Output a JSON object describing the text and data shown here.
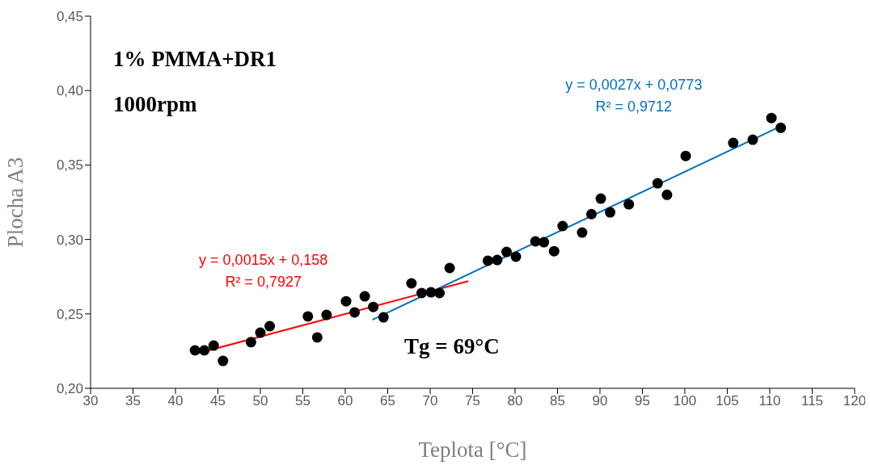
{
  "chart_data": {
    "type": "scatter",
    "xlabel": "Teplota [°C]",
    "ylabel": "Plocha A3",
    "xlim": [
      30,
      120
    ],
    "xticks": [
      30,
      35,
      40,
      45,
      50,
      55,
      60,
      65,
      70,
      75,
      80,
      85,
      90,
      95,
      100,
      105,
      110,
      115,
      120
    ],
    "ylim": [
      0.2,
      0.45
    ],
    "yticks": [
      {
        "value": 0.2,
        "label": "0,20"
      },
      {
        "value": 0.25,
        "label": "0,25"
      },
      {
        "value": 0.3,
        "label": "0,30"
      },
      {
        "value": 0.35,
        "label": "0,35"
      },
      {
        "value": 0.4,
        "label": "0,40"
      },
      {
        "value": 0.45,
        "label": "0,45"
      }
    ],
    "series": [
      {
        "marker": "circle",
        "color": "#000000",
        "x": [
          42.3,
          43.4,
          44.5,
          45.6,
          48.9,
          50.0,
          51.1,
          55.6,
          56.7,
          57.8,
          60.1,
          61.1,
          62.3,
          63.3,
          64.5,
          67.8,
          69.0,
          70.1,
          71.1,
          72.3,
          76.8,
          77.9,
          79.0,
          80.1,
          82.4,
          83.4,
          84.6,
          85.6,
          87.9,
          89.0,
          90.1,
          91.2,
          93.4,
          96.8,
          97.9,
          100.1,
          105.7,
          108.0,
          110.2,
          111.3
        ],
        "values": [
          0.2255,
          0.2255,
          0.2287,
          0.2184,
          0.231,
          0.2374,
          0.2417,
          0.2483,
          0.2342,
          0.2493,
          0.2585,
          0.251,
          0.2618,
          0.2547,
          0.2477,
          0.2705,
          0.264,
          0.2645,
          0.264,
          0.2808,
          0.2857,
          0.2862,
          0.2916,
          0.2884,
          0.2987,
          0.2981,
          0.2921,
          0.309,
          0.3046,
          0.317,
          0.3274,
          0.3182,
          0.3236,
          0.3377,
          0.33,
          0.3561,
          0.3648,
          0.367,
          0.3816,
          0.375
        ]
      },
      {
        "type": "line",
        "name": "y = 0,0015x + 0,158\nR² = 0,7927",
        "color": "#ff0000",
        "x": [
          42.3,
          74.5
        ],
        "values": [
          0.223,
          0.272
        ]
      },
      {
        "type": "line",
        "name": "y = 0,0027x + 0,0773\nR² = 0,9712",
        "color": "#0070c0",
        "x": [
          63.2,
          111.3
        ],
        "values": [
          0.246,
          0.376
        ]
      }
    ],
    "annotations": [
      "1% PMMA+DR1",
      "1000rpm",
      "Tg = 69°C"
    ]
  }
}
